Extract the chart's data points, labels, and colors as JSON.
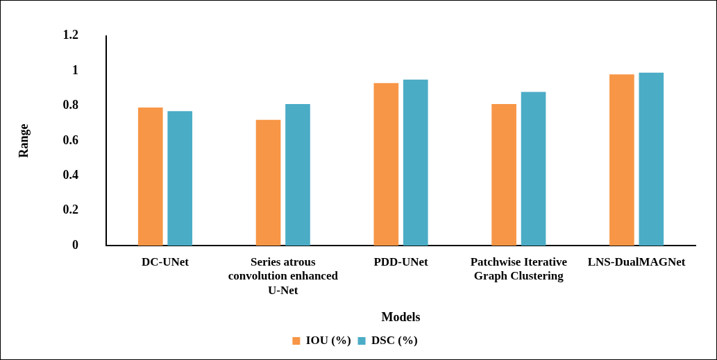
{
  "chart_data": {
    "type": "bar",
    "xlabel": "Models",
    "ylabel": "Range",
    "categories": [
      "DC-UNet",
      "Series atrous convolution enhanced U-Net",
      "PDD-UNet",
      "Patchwise Iterative Graph Clustering",
      "LNS-DualMAGNet"
    ],
    "series": [
      {
        "name": "IOU (%)",
        "color": "#f79646",
        "values": [
          0.79,
          0.72,
          0.93,
          0.81,
          0.98
        ]
      },
      {
        "name": "DSC (%)",
        "color": "#4bacc6",
        "values": [
          0.77,
          0.81,
          0.95,
          0.88,
          0.99
        ]
      }
    ],
    "ylim": [
      0,
      1.2
    ],
    "yticks": [
      0,
      0.2,
      0.4,
      0.6,
      0.8,
      1,
      1.2
    ],
    "grid": false,
    "legend": "bottom"
  }
}
